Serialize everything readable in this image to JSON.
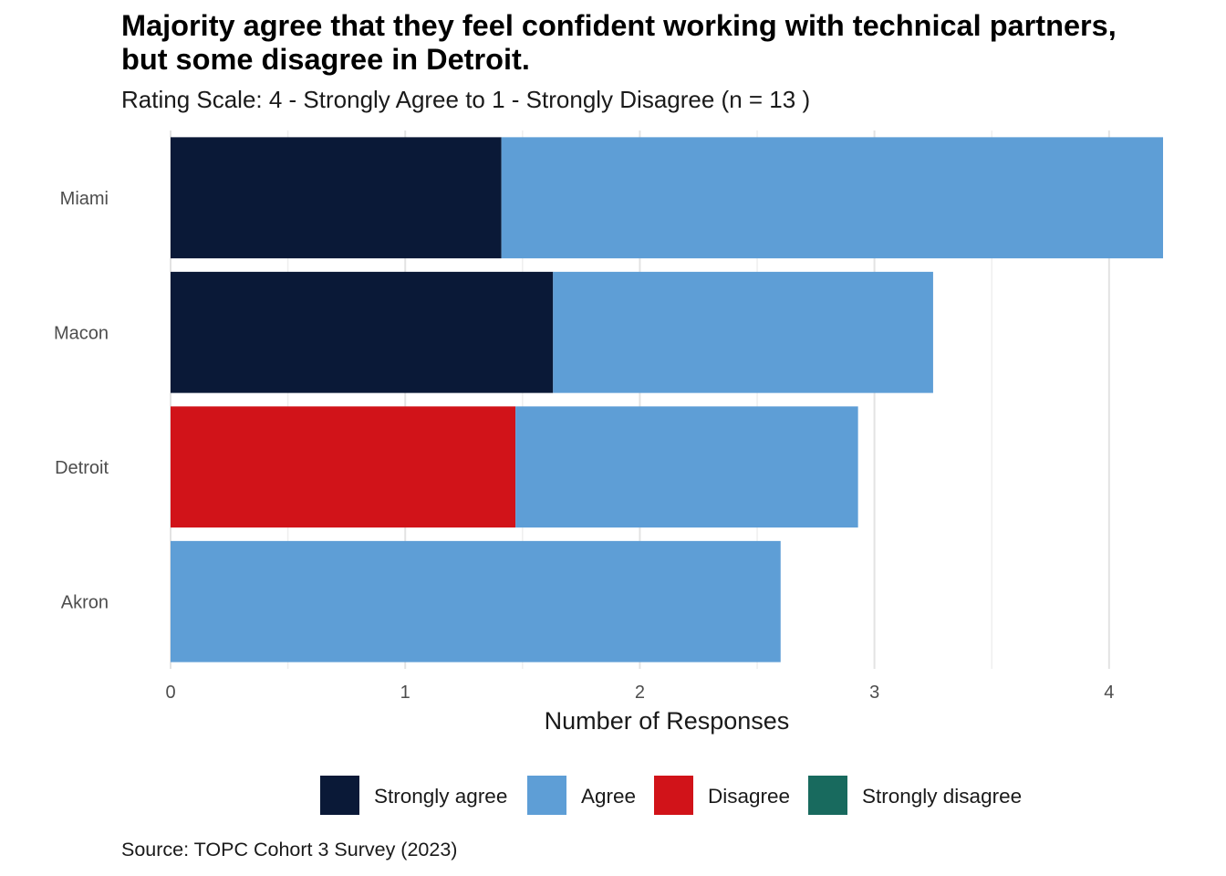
{
  "title": "Majority agree that they feel confident working with technical partners, but some disagree in Detroit.",
  "subtitle": "Rating Scale: 4 - Strongly Agree to 1 - Strongly Disagree (n = 13 )",
  "source": "Source: TOPC Cohort 3 Survey (2023)",
  "chart_data": {
    "type": "bar",
    "orientation": "horizontal",
    "stacked": true,
    "categories": [
      "Miami",
      "Macon",
      "Detroit",
      "Akron"
    ],
    "series": [
      {
        "name": "Strongly agree",
        "color": "#0a1937",
        "values": [
          1.41,
          1.63,
          0,
          0
        ]
      },
      {
        "name": "Agree",
        "color": "#5e9ed6",
        "values": [
          2.82,
          1.62,
          1.46,
          2.6
        ]
      },
      {
        "name": "Disagree",
        "color": "#d11319",
        "values": [
          0,
          0,
          1.47,
          0
        ]
      },
      {
        "name": "Strongly disagree",
        "color": "#186a5e",
        "values": [
          0,
          0,
          0,
          0
        ]
      }
    ],
    "stack_order": [
      "Disagree",
      "Strongly agree",
      "Agree"
    ],
    "xlabel": "Number of Responses",
    "ylabel": "",
    "xticks": [
      "0",
      "1",
      "2",
      "3",
      "4"
    ],
    "xlim": [
      0,
      4.23
    ],
    "grid": true,
    "legend_position": "bottom"
  }
}
